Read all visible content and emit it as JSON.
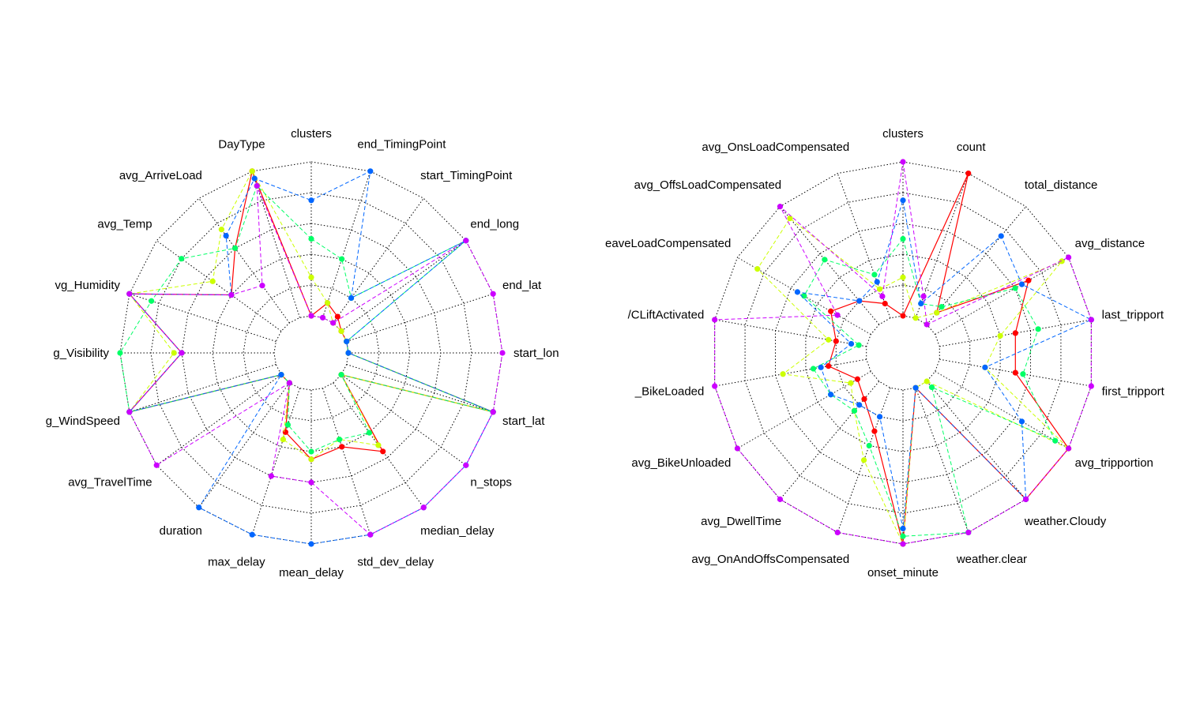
{
  "colors": {
    "c1": "#ff0000",
    "c2": "#ccff00",
    "c3": "#00ff66",
    "c4": "#0066ff",
    "c5": "#cc00ff"
  },
  "chart_data": [
    {
      "type": "radar",
      "title": "",
      "rlim": [
        0,
        1
      ],
      "grid_levels": 5,
      "axes": [
        "clusters",
        "end_TimingPoint",
        "start_TimingPoint",
        "end_long",
        "end_lat",
        "start_lon",
        "start_lat",
        "n_stops",
        "median_delay",
        "std_dev_delay",
        "mean_delay",
        "max_delay",
        "duration",
        "avg_TravelTime",
        "avg_WindSpeed",
        "avg_Visibility",
        "avg_Humidity",
        "avg_Temp",
        "avg_ArriveLoad",
        "DayType"
      ],
      "axis_label_text": [
        "clusters",
        "end_TimingPoint",
        "start_TimingPoint",
        "end_long",
        "end_lat",
        "start_lon",
        "start_lat",
        "n_stops",
        "median_delay",
        "std_dev_delay",
        "mean_delay",
        "max_delay",
        "duration",
        "avg_TravelTime",
        "g_WindSpeed",
        "g_Visibility",
        "vg_Humidity",
        "avg_Temp",
        "avg_ArriveLoad",
        "DayType"
      ],
      "series": [
        {
          "color": "c1",
          "dashed": false,
          "values": [
            0,
            0.1,
            0.05,
            0,
            0,
            0,
            1,
            0,
            0.55,
            0.4,
            0.45,
            0.3,
            0,
            0,
            1,
            0.6,
            1,
            0.4,
            0.6,
            1
          ]
        },
        {
          "color": "c2",
          "dashed": true,
          "values": [
            0.25,
            0.1,
            0,
            0,
            0,
            0,
            1,
            0,
            0.5,
            0.35,
            0.45,
            0.35,
            0,
            0,
            1,
            0.65,
            1,
            0.55,
            0.75,
            1
          ]
        },
        {
          "color": "c3",
          "dashed": true,
          "values": [
            0.5,
            0.4,
            0.2,
            1,
            0,
            0,
            1,
            0,
            0.4,
            0.35,
            0.4,
            0.25,
            0,
            0,
            1,
            1,
            0.85,
            0.8,
            0.6,
            0.9
          ]
        },
        {
          "color": "c4",
          "dashed": true,
          "values": [
            0.75,
            1,
            0.2,
            1,
            0,
            0,
            1,
            1,
            1,
            1,
            1,
            1,
            1,
            0,
            1,
            0.6,
            1,
            0.4,
            0.7,
            0.95
          ]
        },
        {
          "color": "c5",
          "dashed": true,
          "values": [
            0,
            0,
            0,
            1,
            1,
            1,
            1,
            1,
            1,
            1,
            0.6,
            0.6,
            0,
            1,
            1,
            0.6,
            1,
            0.4,
            0.3,
            0.9
          ]
        }
      ]
    },
    {
      "type": "radar",
      "title": "",
      "rlim": [
        0,
        1
      ],
      "grid_levels": 5,
      "axes": [
        "clusters",
        "count",
        "total_distance",
        "avg_distance",
        "last_tripportion",
        "first_tripportion",
        "avg_tripportion",
        "weather.Cloudy",
        "weather.clear",
        "onset_minute",
        "avg_OnAndOffsCompensated",
        "avg_DwellTime",
        "avg_BikeUnloaded",
        "avg_BikeLoaded",
        "avg_WCLiftActivated",
        "avg_LeaveLoadCompensated",
        "avg_OffsLoadCompensated",
        "avg_OnsLoadCompensated"
      ],
      "axis_label_text": [
        "clusters",
        "count",
        "total_distance",
        "avg_distance",
        "last_tripport",
        "first_tripport",
        "avg_tripportion",
        "weather.Cloudy",
        "weather.clear",
        "onset_minute",
        "avg_OnAndOffsCompensated",
        "avg_DwellTime",
        "avg_BikeUnloaded",
        "_BikeLoaded",
        "/CLiftActivated",
        "eaveLoadCompensated",
        "avg_OffsLoadCompensated",
        "avg_OnsLoadCompensated"
      ],
      "series": [
        {
          "color": "c1",
          "dashed": false,
          "values": [
            0,
            1,
            0.1,
            0.7,
            0.5,
            0.5,
            1,
            1,
            0,
            1,
            0.3,
            0.15,
            0.1,
            0.25,
            0.2,
            0.3,
            0.2,
            0.1
          ]
        },
        {
          "color": "c2",
          "dashed": true,
          "values": [
            0.25,
            0,
            0.1,
            0.95,
            0.4,
            0.3,
            1,
            0,
            0,
            1,
            0.5,
            0.25,
            0.15,
            0.55,
            0.25,
            0.85,
            0.9,
            0.2
          ]
        },
        {
          "color": "c3",
          "dashed": true,
          "values": [
            0.5,
            0.1,
            0.15,
            0.6,
            0.65,
            0.55,
            0.9,
            0.05,
            1,
            0.95,
            0.4,
            0.25,
            0.3,
            0.35,
            0.05,
            0.5,
            0.55,
            0.3
          ]
        },
        {
          "color": "c4",
          "dashed": true,
          "values": [
            0.75,
            0.1,
            0.75,
            0.65,
            1,
            0.3,
            0.65,
            1,
            0,
            0.9,
            0.2,
            0.2,
            0.3,
            0.3,
            0.1,
            0.55,
            0.2,
            0.25
          ]
        },
        {
          "color": "c5",
          "dashed": true,
          "values": [
            1,
            0.15,
            0,
            1,
            1,
            1,
            1,
            1,
            1,
            1,
            1,
            1,
            1,
            1,
            1,
            0.25,
            1,
            0.15
          ]
        }
      ]
    }
  ]
}
